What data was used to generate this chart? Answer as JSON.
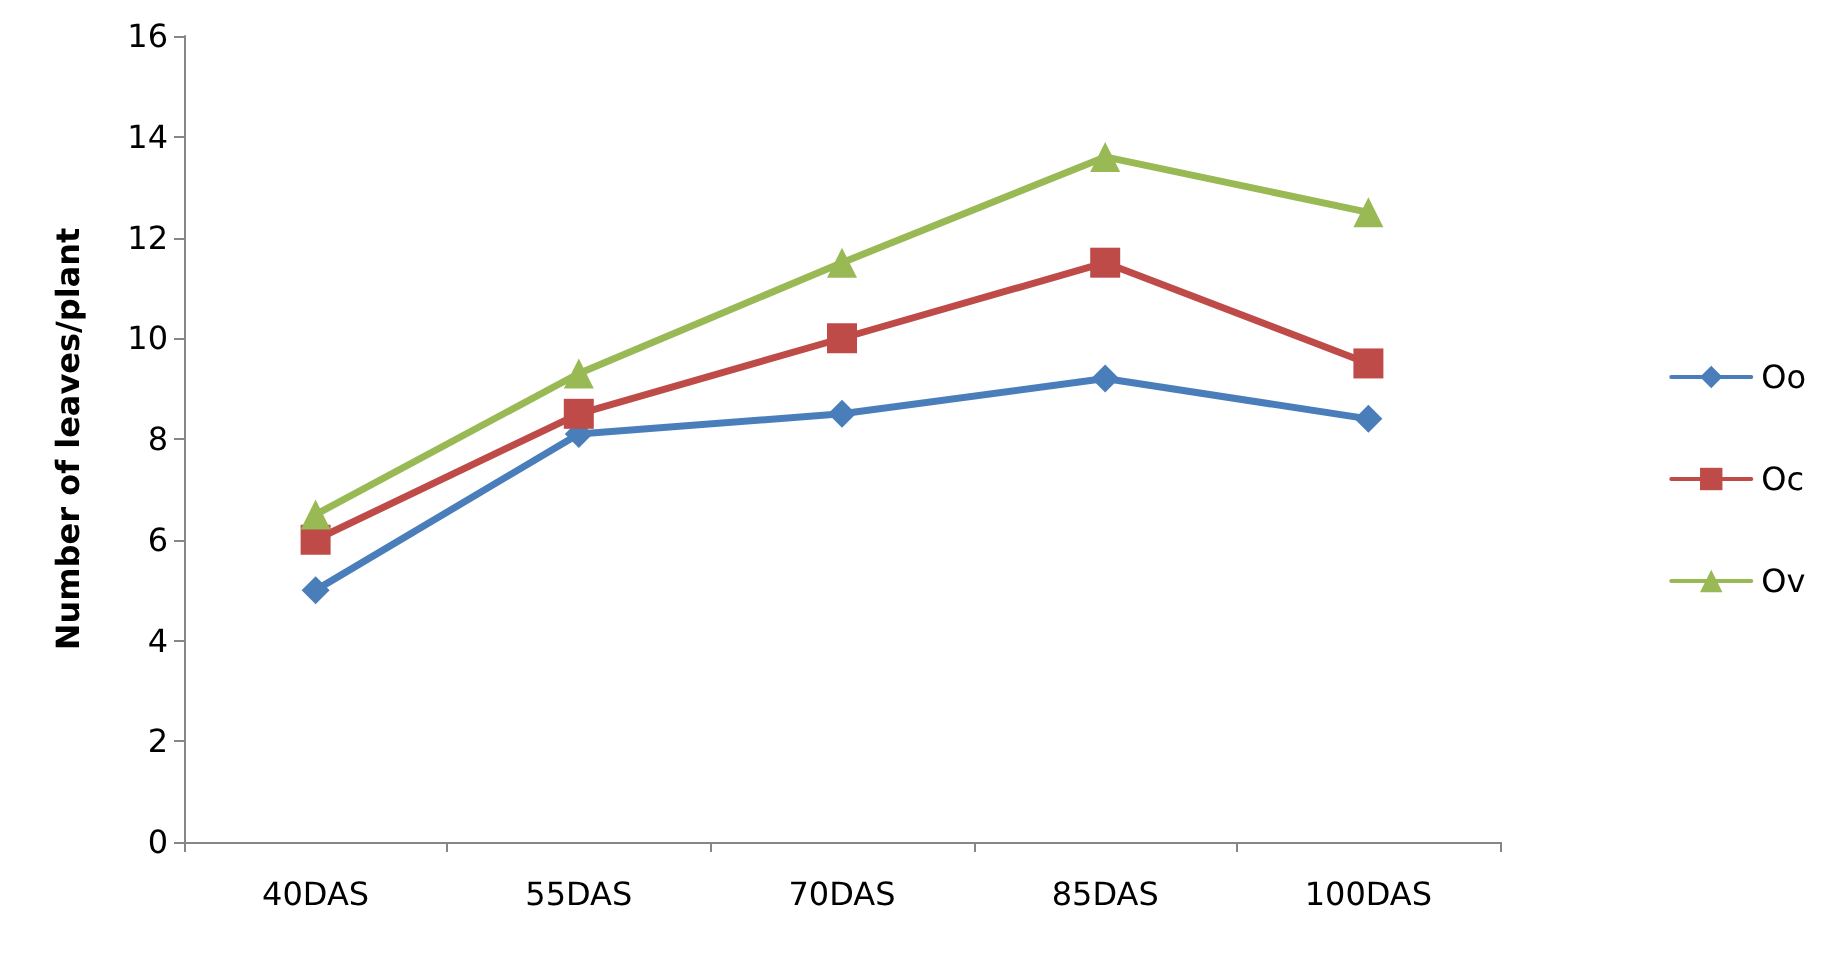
{
  "chart_data": {
    "type": "line",
    "ylabel": "Number of leaves/plant",
    "categories": [
      "40DAS",
      "55DAS",
      "70DAS",
      "85DAS",
      "100DAS"
    ],
    "series": [
      {
        "name": "Oo",
        "color": "#4a7ebb",
        "marker": "diamond",
        "values": [
          5.0,
          8.1,
          8.5,
          9.2,
          8.4
        ]
      },
      {
        "name": "Oc",
        "color": "#be4b48",
        "marker": "square",
        "values": [
          6.0,
          8.5,
          10.0,
          11.5,
          9.5
        ]
      },
      {
        "name": "Ov",
        "color": "#98b954",
        "marker": "triangle",
        "values": [
          6.5,
          9.3,
          11.5,
          13.6,
          12.5
        ]
      }
    ],
    "ylim": [
      0,
      16
    ],
    "yticks": [
      0,
      2,
      4,
      6,
      8,
      10,
      12,
      14,
      16
    ],
    "grid": false,
    "legend": "right"
  }
}
